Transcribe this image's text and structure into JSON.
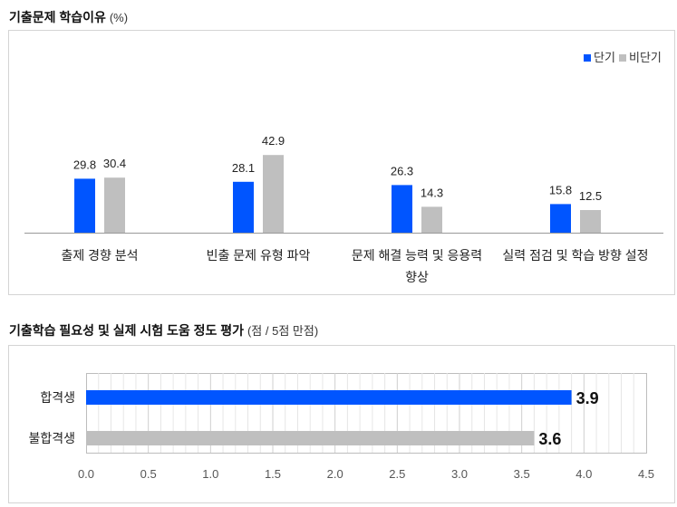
{
  "chart1": {
    "title": "기출문제 학습이유",
    "unit": "(%)"
  },
  "chart2": {
    "title": "기출학습 필요성 및 실제 시험 도움 정도 평가",
    "unit": "(점 / 5점 만점)"
  },
  "colors": {
    "blue": "#0055ff",
    "gray": "#bfbfbf"
  },
  "chart_data": [
    {
      "type": "bar",
      "orientation": "vertical",
      "title": "기출문제 학습이유",
      "unit": "%",
      "categories": [
        [
          "출제 경향 분석"
        ],
        [
          "빈출 문제 유형 파악"
        ],
        [
          "문제 해결 능력 및 응용력",
          "향상"
        ],
        [
          "실력 점검 및 학습 방향 설정"
        ]
      ],
      "series": [
        {
          "name": "단기",
          "color": "#0055ff",
          "values": [
            29.8,
            28.1,
            26.3,
            15.8
          ]
        },
        {
          "name": "비단기",
          "color": "#bfbfbf",
          "values": [
            30.4,
            42.9,
            14.3,
            12.5
          ]
        }
      ],
      "ylim": [
        0,
        50
      ],
      "grid": false,
      "legend": "top-right"
    },
    {
      "type": "bar",
      "orientation": "horizontal",
      "title": "기출학습 필요성 및 실제 시험 도움 정도 평가",
      "unit": "점 / 5점 만점",
      "categories": [
        "합격생",
        "불합격생"
      ],
      "values": [
        3.9,
        3.6
      ],
      "value_labels": [
        "3.9",
        "3.6"
      ],
      "colors": [
        "#0055ff",
        "#bfbfbf"
      ],
      "xlim": [
        0,
        4.5
      ],
      "xticks": [
        "0.0",
        "0.5",
        "1.0",
        "1.5",
        "2.0",
        "2.5",
        "3.0",
        "3.5",
        "4.0",
        "4.5"
      ],
      "grid": true,
      "legend": "none"
    }
  ]
}
